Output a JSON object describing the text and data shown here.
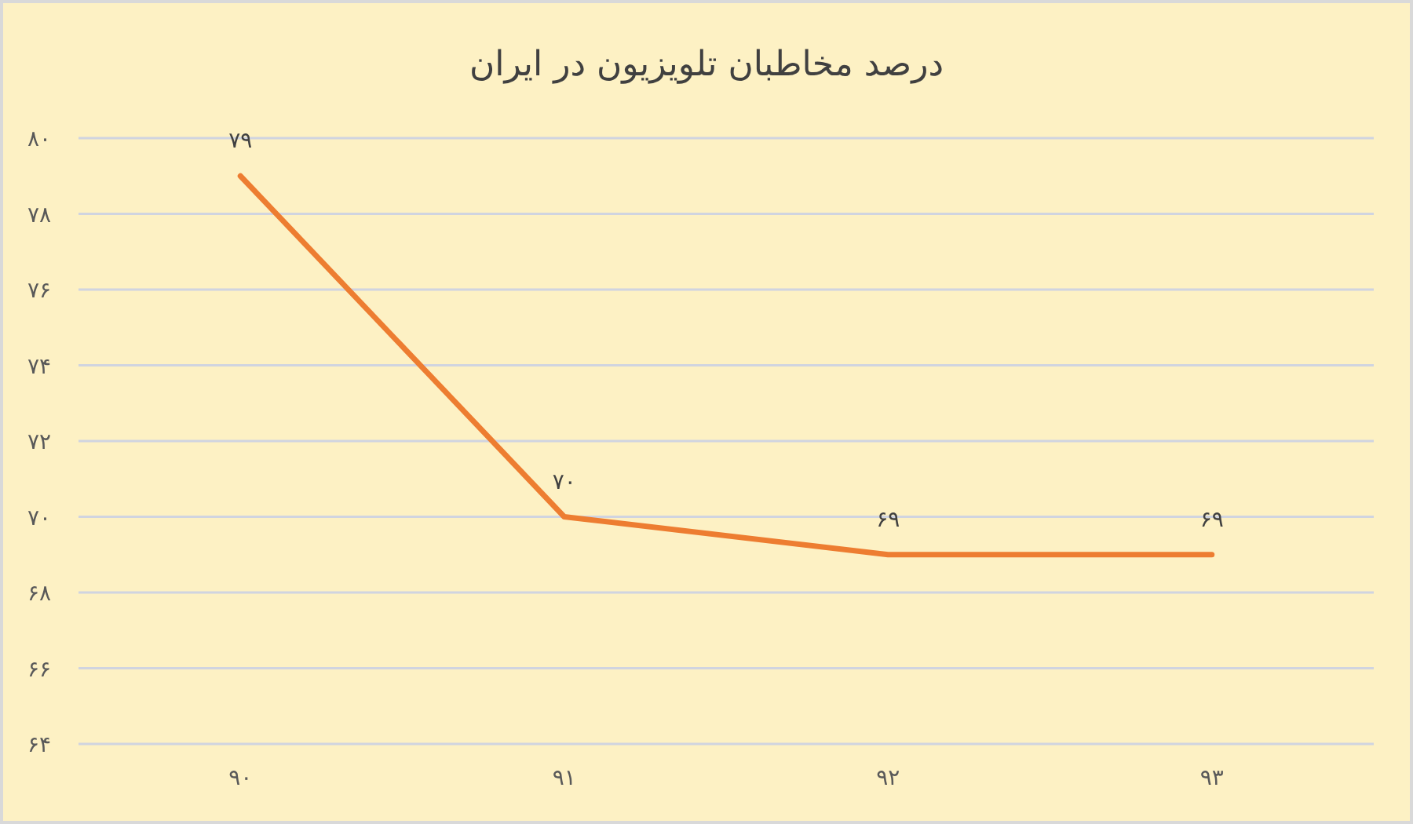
{
  "chart_data": {
    "type": "line",
    "title": "درصد مخاطبان تلویزیون در ایران",
    "categories": [
      "۹۰",
      "۹۱",
      "۹۲",
      "۹۳"
    ],
    "series": [
      {
        "color": "#ed7d31",
        "values": [
          79,
          70,
          69,
          69
        ],
        "value_labels": [
          "۷۹",
          "۷۰",
          "۶۹",
          "۶۹"
        ]
      }
    ],
    "ylim": [
      64,
      80
    ],
    "yticks": [
      {
        "value": 64,
        "label": "۶۴"
      },
      {
        "value": 66,
        "label": "۶۶"
      },
      {
        "value": 68,
        "label": "۶۸"
      },
      {
        "value": 70,
        "label": "۷۰"
      },
      {
        "value": 72,
        "label": "۷۲"
      },
      {
        "value": 74,
        "label": "۷۴"
      },
      {
        "value": 76,
        "label": "۷۶"
      },
      {
        "value": 78,
        "label": "۷۸"
      },
      {
        "value": 80,
        "label": "۸۰"
      }
    ],
    "grid": "y",
    "marker": "none",
    "line_style": "solid"
  }
}
